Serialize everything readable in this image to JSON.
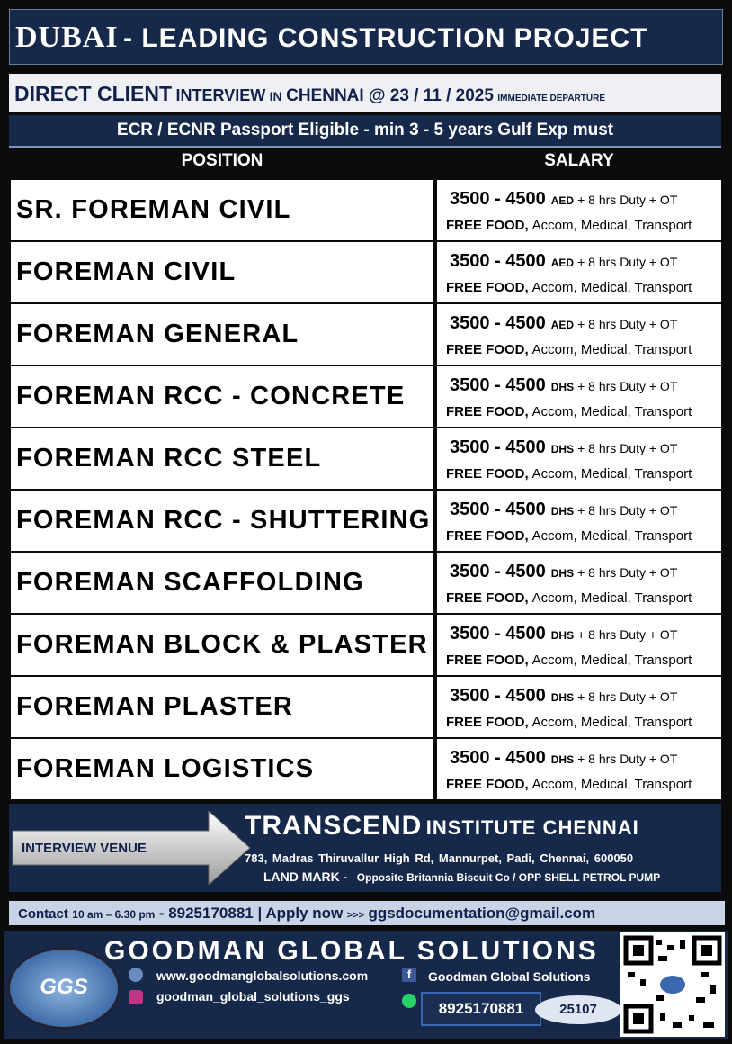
{
  "header": {
    "title_main": "DUBAI",
    "title_rest": "- LEADING CONSTRUCTION PROJECT"
  },
  "interview": {
    "client": "DIRECT CLIENT",
    "interview": "INTERVIEW",
    "in": "IN",
    "place_date": "CHENNAI @ 23 / 11 / 2025",
    "departure": "IMMEDIATE DEPARTURE"
  },
  "eligibility": "ECR / ECNR Passport Eligible -  min 3 - 5 years Gulf Exp must",
  "table": {
    "headers": [
      "POSITION",
      "SALARY"
    ],
    "rows": [
      {
        "position": "SR. FOREMAN CIVIL",
        "salary": "3500 - 4500",
        "currency": "AED",
        "extras": "+ 8 hrs Duty + OT",
        "benefits_bold": "FREE FOOD,",
        "benefits": "Accom, Medical, Transport"
      },
      {
        "position": "FOREMAN CIVIL",
        "salary": "3500 - 4500",
        "currency": "AED",
        "extras": "+ 8 hrs Duty + OT",
        "benefits_bold": "FREE FOOD,",
        "benefits": "Accom, Medical, Transport"
      },
      {
        "position": "FOREMAN GENERAL",
        "salary": "3500 - 4500",
        "currency": "AED",
        "extras": "+ 8 hrs Duty + OT",
        "benefits_bold": "FREE FOOD,",
        "benefits": "Accom, Medical, Transport"
      },
      {
        "position": "FOREMAN RCC - CONCRETE",
        "salary": "3500 - 4500",
        "currency": "DHS",
        "extras": "+ 8 hrs Duty + OT",
        "benefits_bold": "FREE FOOD,",
        "benefits": "Accom, Medical, Transport"
      },
      {
        "position": "FOREMAN RCC STEEL",
        "salary": "3500 - 4500",
        "currency": "DHS",
        "extras": "+ 8 hrs Duty + OT",
        "benefits_bold": "FREE FOOD,",
        "benefits": "Accom, Medical, Transport"
      },
      {
        "position": "FOREMAN RCC - SHUTTERING",
        "salary": "3500 - 4500",
        "currency": "DHS",
        "extras": "+ 8 hrs Duty + OT",
        "benefits_bold": "FREE FOOD,",
        "benefits": "Accom, Medical, Transport"
      },
      {
        "position": "FOREMAN SCAFFOLDING",
        "salary": "3500 - 4500",
        "currency": "DHS",
        "extras": "+ 8 hrs Duty + OT",
        "benefits_bold": "FREE FOOD,",
        "benefits": "Accom, Medical, Transport"
      },
      {
        "position": "FOREMAN BLOCK & PLASTER",
        "salary": "3500 - 4500",
        "currency": "DHS",
        "extras": "+ 8 hrs Duty + OT",
        "benefits_bold": "FREE FOOD,",
        "benefits": "Accom, Medical, Transport"
      },
      {
        "position": "FOREMAN PLASTER",
        "salary": "3500 - 4500",
        "currency": "DHS",
        "extras": "+ 8 hrs Duty + OT",
        "benefits_bold": "FREE FOOD,",
        "benefits": "Accom, Medical, Transport"
      },
      {
        "position": "FOREMAN LOGISTICS",
        "salary": "3500 - 4500",
        "currency": "DHS",
        "extras": "+ 8 hrs Duty + OT",
        "benefits_bold": "FREE FOOD,",
        "benefits": "Accom, Medical, Transport"
      }
    ]
  },
  "venue": {
    "label": "INTERVIEW VENUE",
    "name_big": "TRANSCEND",
    "name_rest": "INSTITUTE CHENNAI",
    "address": "783, Madras Thiruvallur High Rd, Mannurpet, Padi, Chennai, 600050",
    "landmark_label": "LAND MARK -",
    "landmark": "Opposite Britannia Biscuit Co / OPP SHELL PETROL PUMP"
  },
  "contact": {
    "label": "Contact",
    "hours": "10 am – 6.30 pm",
    "phone_apply": "- 8925170881 | Apply now",
    "arrows": ">>>",
    "email": "ggsdocumentation@gmail.com"
  },
  "footer": {
    "company": "GOODMAN GLOBAL SOLUTIONS",
    "logo": "GGS",
    "website": "www.goodmanglobalsolutions.com",
    "facebook": "Goodman Global Solutions",
    "instagram": "goodman_global_solutions_ggs",
    "phone": "8925170881",
    "code": "25107"
  }
}
